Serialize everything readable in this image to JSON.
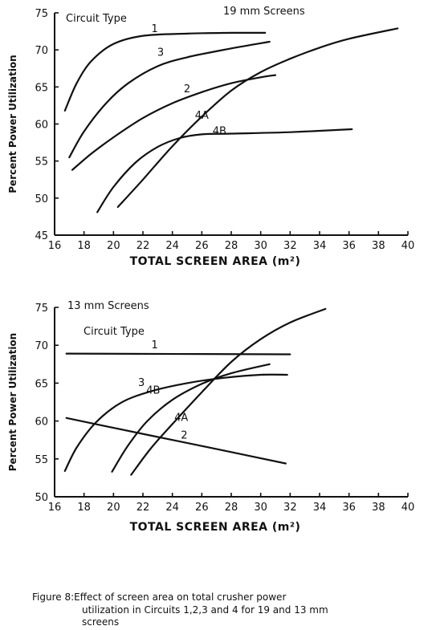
{
  "chart_data": [
    {
      "type": "line",
      "panel_label": "19 mm Screens",
      "legend_title": "Circuit Type",
      "xlabel": "TOTAL SCREEN AREA (m²)",
      "ylabel": "Percent Power Utilization",
      "xlim": [
        16,
        40
      ],
      "ylim": [
        45,
        75
      ],
      "x_ticks": [
        16,
        18,
        20,
        22,
        24,
        26,
        28,
        30,
        32,
        34,
        36,
        38,
        40
      ],
      "y_ticks": [
        45,
        50,
        55,
        60,
        65,
        70,
        75
      ],
      "grid": false,
      "series": [
        {
          "name": "1",
          "label_at": [
            22.8,
            72.4
          ],
          "points": [
            [
              16.7,
              61.8
            ],
            [
              17.5,
              65.5
            ],
            [
              18.5,
              68.5
            ],
            [
              20,
              70.8
            ],
            [
              22,
              71.9
            ],
            [
              25,
              72.2
            ],
            [
              28,
              72.3
            ],
            [
              30.3,
              72.3
            ]
          ]
        },
        {
          "name": "3",
          "label_at": [
            23.2,
            69.2
          ],
          "points": [
            [
              17,
              55.5
            ],
            [
              18,
              59
            ],
            [
              19.5,
              62.8
            ],
            [
              21,
              65.5
            ],
            [
              23,
              67.8
            ],
            [
              25,
              69
            ],
            [
              28,
              70.2
            ],
            [
              30.6,
              71.1
            ]
          ]
        },
        {
          "name": "2",
          "label_at": [
            25.0,
            64.3
          ],
          "points": [
            [
              17.2,
              53.8
            ],
            [
              18.5,
              56
            ],
            [
              20,
              58.2
            ],
            [
              22,
              60.8
            ],
            [
              24,
              62.8
            ],
            [
              26,
              64.3
            ],
            [
              28,
              65.5
            ],
            [
              30,
              66.3
            ],
            [
              31,
              66.6
            ]
          ]
        },
        {
          "name": "4A",
          "label_at": [
            26.0,
            60.7
          ],
          "points": [
            [
              20.3,
              48.8
            ],
            [
              22,
              52.5
            ],
            [
              24,
              57
            ],
            [
              26,
              61
            ],
            [
              28,
              64.5
            ],
            [
              30,
              67
            ],
            [
              32,
              68.8
            ],
            [
              34,
              70.3
            ],
            [
              36,
              71.5
            ],
            [
              39.3,
              72.9
            ]
          ]
        },
        {
          "name": "4B",
          "label_at": [
            27.2,
            58.6
          ],
          "points": [
            [
              18.9,
              48.1
            ],
            [
              20,
              51.5
            ],
            [
              21.5,
              54.8
            ],
            [
              23,
              56.9
            ],
            [
              24.5,
              58.1
            ],
            [
              26,
              58.6
            ],
            [
              28,
              58.7
            ],
            [
              32,
              58.9
            ],
            [
              36.2,
              59.3
            ]
          ]
        }
      ]
    },
    {
      "type": "line",
      "panel_label": "13 mm Screens",
      "legend_title": "Circuit Type",
      "xlabel": "TOTAL SCREEN AREA (m²)",
      "ylabel": "Percent Power Utilization",
      "xlim": [
        16,
        40
      ],
      "ylim": [
        50,
        75
      ],
      "x_ticks": [
        16,
        18,
        20,
        22,
        24,
        26,
        28,
        30,
        32,
        34,
        36,
        38,
        40
      ],
      "y_ticks": [
        50,
        55,
        60,
        65,
        70,
        75
      ],
      "grid": false,
      "series": [
        {
          "name": "1",
          "label_at": [
            22.8,
            69.6
          ],
          "points": [
            [
              16.8,
              68.9
            ],
            [
              32,
              68.8
            ]
          ]
        },
        {
          "name": "3",
          "label_at": [
            21.9,
            64.6
          ],
          "points": [
            [
              16.7,
              53.4
            ],
            [
              17.5,
              56.5
            ],
            [
              18.8,
              59.8
            ],
            [
              20.5,
              62.4
            ],
            [
              22.5,
              63.9
            ],
            [
              25,
              65
            ],
            [
              27.5,
              65.7
            ],
            [
              30,
              66.1
            ],
            [
              31.8,
              66.1
            ]
          ]
        },
        {
          "name": "4B",
          "label_at": [
            22.7,
            63.6
          ],
          "points": [
            [
              19.9,
              53.3
            ],
            [
              21,
              56.8
            ],
            [
              22.3,
              60
            ],
            [
              24,
              62.8
            ],
            [
              26,
              64.9
            ],
            [
              28,
              66.3
            ],
            [
              30.6,
              67.5
            ]
          ]
        },
        {
          "name": "2",
          "label_at": [
            24.8,
            57.7
          ],
          "points": [
            [
              16.8,
              60.4
            ],
            [
              20,
              59.1
            ],
            [
              24,
              57.5
            ],
            [
              28,
              55.9
            ],
            [
              31.7,
              54.4
            ]
          ]
        },
        {
          "name": "4A",
          "label_at": [
            24.6,
            60.0
          ],
          "points": [
            [
              21.2,
              52.9
            ],
            [
              22.5,
              56.3
            ],
            [
              24,
              59.6
            ],
            [
              26,
              63.8
            ],
            [
              28,
              67.8
            ],
            [
              30,
              70.8
            ],
            [
              32,
              73
            ],
            [
              34.4,
              74.8
            ]
          ]
        }
      ]
    }
  ],
  "caption": {
    "line1": "Figure  8:Effect of screen area on total crusher power",
    "line2": "utilization in Circuits 1,2,3 and 4 for 19 and 13 mm",
    "line3": "screens"
  }
}
